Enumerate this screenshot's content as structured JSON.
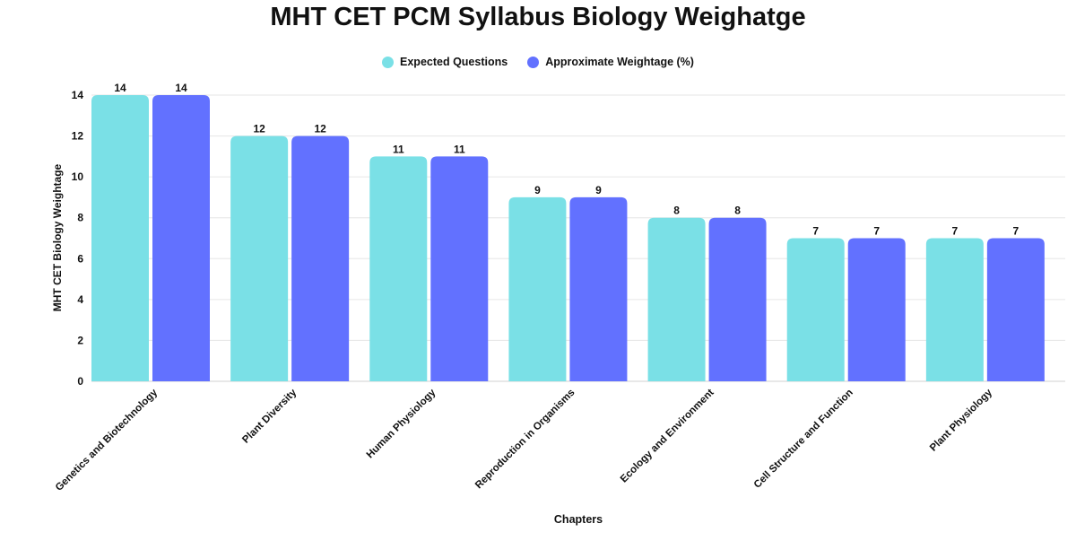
{
  "chart_data": {
    "type": "bar",
    "title": "MHT CET PCM Syllabus Biology Weighatge",
    "xlabel": "Chapters",
    "ylabel": "MHT CET Biology Weightage",
    "ylim": [
      0,
      14
    ],
    "yticks": [
      "0",
      "2",
      "4",
      "6",
      "8",
      "10",
      "12",
      "14"
    ],
    "grid": true,
    "legend_position": "top-center",
    "categories": [
      "Genetics and Biotechnology",
      "Plant Diversity",
      "Human Physiology",
      "Reproduction in Organisms",
      "Ecology and Environment",
      "Cell Structure and Function",
      "Plant Physiology"
    ],
    "series": [
      {
        "name": "Expected Questions",
        "color": "#7ae0e6",
        "values": [
          14,
          12,
          11,
          9,
          8,
          7,
          7
        ]
      },
      {
        "name": "Approximate Weightage (%)",
        "color": "#6271ff",
        "values": [
          14,
          12,
          11,
          9,
          8,
          7,
          7
        ]
      }
    ]
  }
}
